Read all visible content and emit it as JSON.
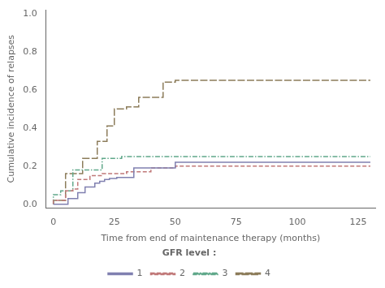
{
  "chart_data": {
    "type": "step",
    "xlabel": "Time from end of maintenance therapy (months)",
    "ylabel": "Cumulative incidence of relapses",
    "xlim": [
      -3,
      132
    ],
    "ylim": [
      -0.02,
      1.02
    ],
    "xticks": [
      0,
      25,
      50,
      75,
      100,
      125
    ],
    "yticks": [
      {
        "value": 0.0,
        "label": "0.0"
      },
      0.2,
      0.4,
      0.6,
      0.8,
      {
        "value": 1.0,
        "label": "1.0"
      }
    ],
    "grid": false,
    "legend": "bottom",
    "legend_title": "GFR level :",
    "series": [
      {
        "name": "1",
        "color": "#8080b0",
        "line_style": "solid",
        "x": [
          0,
          6,
          10,
          13,
          17,
          19,
          21,
          23,
          26,
          33,
          50,
          75,
          130
        ],
        "values": [
          0.0,
          0.0,
          0.03,
          0.06,
          0.09,
          0.11,
          0.12,
          0.13,
          0.135,
          0.14,
          0.19,
          0.22,
          0.22
        ]
      },
      {
        "name": "2",
        "color": "#c07878",
        "line_style": "dashed",
        "x": [
          0,
          5,
          8,
          10,
          15,
          20,
          30,
          40,
          50,
          75,
          130
        ],
        "values": [
          0.0,
          0.02,
          0.07,
          0.08,
          0.13,
          0.15,
          0.16,
          0.17,
          0.19,
          0.2,
          0.2
        ]
      },
      {
        "name": "3",
        "color": "#60a88a",
        "line_style": "dashdot",
        "x": [
          0,
          3,
          8,
          20,
          28,
          35,
          130
        ],
        "values": [
          0.0,
          0.05,
          0.07,
          0.18,
          0.24,
          0.25,
          0.25
        ]
      },
      {
        "name": "4",
        "color": "#8c7c5a",
        "line_style": "longdash",
        "x": [
          0,
          5,
          12,
          18,
          22,
          25,
          30,
          35,
          45,
          50,
          55,
          82,
          130
        ],
        "values": [
          0.0,
          0.02,
          0.16,
          0.24,
          0.33,
          0.41,
          0.5,
          0.51,
          0.56,
          0.64,
          0.65,
          0.65,
          0.65
        ]
      }
    ]
  }
}
